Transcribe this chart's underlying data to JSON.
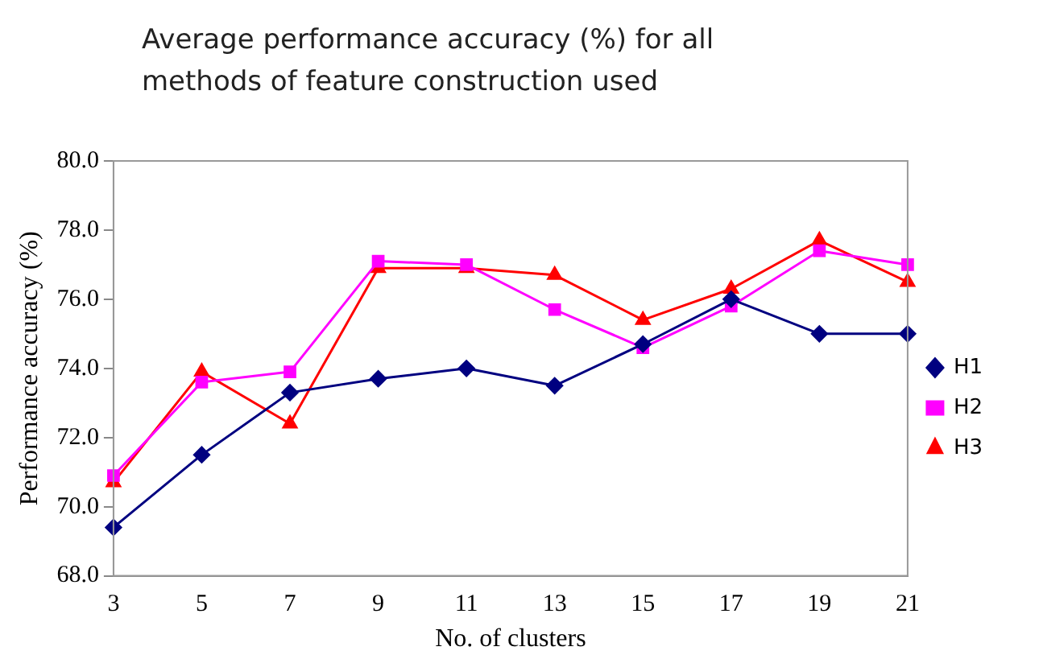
{
  "chart_data": {
    "type": "line",
    "title": "Average performance accuracy (%) for all methods of feature construction used",
    "xlabel": "No. of clusters",
    "ylabel": "Performance accuracy (%)",
    "categories": [
      "3",
      "5",
      "7",
      "9",
      "11",
      "13",
      "15",
      "17",
      "19",
      "21"
    ],
    "series": [
      {
        "name": "H1",
        "color": "#000080",
        "marker": "diamond",
        "values": [
          69.4,
          71.5,
          73.3,
          73.7,
          74.0,
          73.5,
          74.7,
          76.0,
          75.0,
          75.0
        ]
      },
      {
        "name": "H2",
        "color": "#ff00ff",
        "marker": "square",
        "values": [
          70.9,
          73.6,
          73.9,
          77.1,
          77.0,
          75.7,
          74.6,
          75.8,
          77.4,
          77.0
        ]
      },
      {
        "name": "H3",
        "color": "#ff0000",
        "marker": "triangle",
        "values": [
          70.7,
          73.9,
          72.4,
          76.9,
          76.9,
          76.7,
          75.4,
          76.3,
          77.7,
          76.5
        ]
      }
    ],
    "ylim": [
      68,
      80
    ],
    "yticks": [
      {
        "value": 68,
        "label": "68.0"
      },
      {
        "value": 70,
        "label": "70.0"
      },
      {
        "value": 72,
        "label": "72.0"
      },
      {
        "value": 74,
        "label": "74.0"
      },
      {
        "value": 76,
        "label": "76.0"
      },
      {
        "value": 78,
        "label": "78.0"
      },
      {
        "value": 80,
        "label": "80.0"
      }
    ],
    "grid": false,
    "legend": "right",
    "line_style": "solid"
  }
}
